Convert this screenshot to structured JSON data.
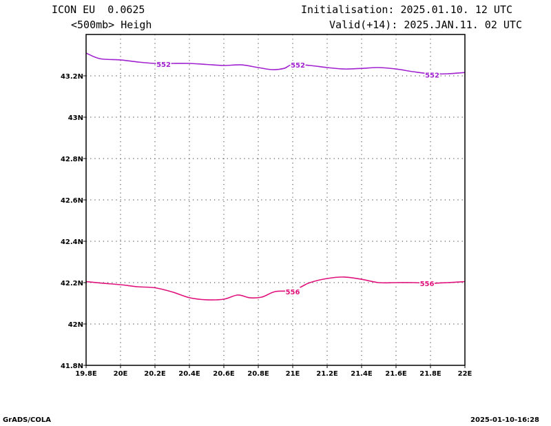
{
  "header": {
    "model": "ICON EU  0.0625",
    "field": "<500mb> Heigh",
    "init": "Initialisation: 2025.01.10. 12 UTC",
    "valid": "Valid(+14): 2025.JAN.11. 02 UTC"
  },
  "footer": {
    "left": "GrADS/COLA",
    "right": "2025-01-10-16:28"
  },
  "chart_data": {
    "type": "line",
    "title": "",
    "xlabel": "",
    "ylabel": "",
    "xlim": [
      19.8,
      22.0
    ],
    "ylim": [
      41.8,
      43.4
    ],
    "grid": true,
    "x_ticks": [
      19.8,
      20.0,
      20.2,
      20.4,
      20.6,
      20.8,
      21.0,
      21.2,
      21.4,
      21.6,
      21.8,
      22.0
    ],
    "x_tick_labels": [
      "19.8E",
      "20E",
      "20.2E",
      "20.4E",
      "20.6E",
      "20.8E",
      "21E",
      "21.2E",
      "21.4E",
      "21.6E",
      "21.8E",
      "22E"
    ],
    "y_ticks": [
      41.8,
      42.0,
      42.2,
      42.4,
      42.6,
      42.8,
      43.0,
      43.2
    ],
    "y_tick_labels": [
      "41.8N",
      "42N",
      "42.2N",
      "42.4N",
      "42.6N",
      "42.8N",
      "43N",
      "43.2N"
    ],
    "series": [
      {
        "label": "552",
        "color": "#a020d0",
        "x": [
          19.8,
          19.88,
          20.0,
          20.1,
          20.2,
          20.3,
          20.4,
          20.5,
          20.6,
          20.7,
          20.8,
          20.88,
          20.95,
          21.0,
          21.1,
          21.2,
          21.3,
          21.4,
          21.5,
          21.6,
          21.7,
          21.8,
          21.9,
          22.0
        ],
        "values": [
          43.31,
          43.283,
          43.277,
          43.267,
          43.26,
          43.26,
          43.26,
          43.255,
          43.25,
          43.253,
          43.24,
          43.23,
          43.236,
          43.255,
          43.25,
          43.24,
          43.233,
          43.236,
          43.24,
          43.233,
          43.22,
          43.21,
          43.21,
          43.216
        ],
        "contour_labels": [
          {
            "x": 20.25,
            "y": 43.257
          },
          {
            "x": 21.03,
            "y": 43.253
          },
          {
            "x": 21.81,
            "y": 43.205
          }
        ]
      },
      {
        "label": "556",
        "color": "#e0107a",
        "x": [
          19.8,
          19.9,
          20.0,
          20.1,
          20.2,
          20.3,
          20.4,
          20.5,
          20.6,
          20.68,
          20.75,
          20.82,
          20.9,
          21.0,
          21.05,
          21.1,
          21.2,
          21.3,
          21.4,
          21.5,
          21.6,
          21.7,
          21.8,
          21.9,
          22.0
        ],
        "values": [
          42.205,
          42.197,
          42.19,
          42.18,
          42.175,
          42.155,
          42.127,
          42.117,
          42.12,
          42.14,
          42.127,
          42.13,
          42.157,
          42.16,
          42.18,
          42.2,
          42.22,
          42.227,
          42.216,
          42.2,
          42.2,
          42.2,
          42.197,
          42.2,
          42.205
        ],
        "contour_labels": [
          {
            "x": 21.0,
            "y": 42.157
          },
          {
            "x": 21.78,
            "y": 42.197
          }
        ]
      }
    ]
  }
}
